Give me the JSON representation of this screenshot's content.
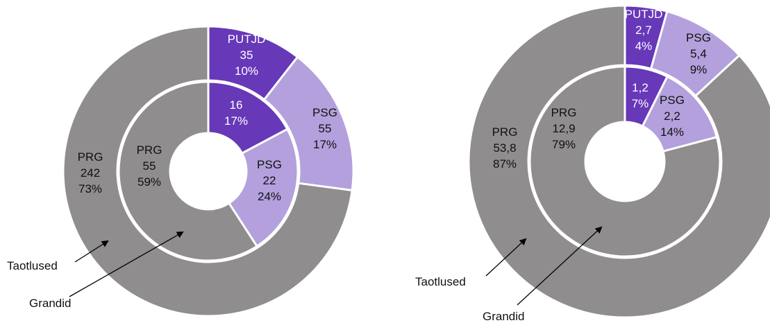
{
  "chart_data": [
    {
      "type": "donut",
      "series": [
        {
          "name": "Taotlused",
          "categories": [
            "PUTJD",
            "PSG",
            "PRG"
          ],
          "values": [
            35,
            55,
            242
          ],
          "percent_labels": [
            "10%",
            "17%",
            "73%"
          ],
          "colors": [
            "#6738b8",
            "#b3a0dc",
            "#8f8d8d"
          ]
        },
        {
          "name": "Grandid",
          "categories": [
            null,
            "PSG",
            "PRG"
          ],
          "values": [
            16,
            22,
            55
          ],
          "percent_labels": [
            "17%",
            "24%",
            "59%"
          ],
          "colors": [
            "#6738b8",
            "#b3a0dc",
            "#8f8d8d"
          ]
        }
      ]
    },
    {
      "type": "donut",
      "series": [
        {
          "name": "Taotlused",
          "categories": [
            "PUTJD",
            "PSG",
            "PRG"
          ],
          "values": [
            2.7,
            5.4,
            53.8
          ],
          "value_labels": [
            "2,7",
            "5,4",
            "53,8"
          ],
          "percent_labels": [
            "4%",
            "9%",
            "87%"
          ],
          "colors": [
            "#6738b8",
            "#b3a0dc",
            "#8f8d8d"
          ]
        },
        {
          "name": "Grandid",
          "categories": [
            null,
            "PSG",
            "PRG"
          ],
          "values": [
            1.2,
            2.2,
            12.9
          ],
          "value_labels": [
            "1,2",
            "2,2",
            "12,9"
          ],
          "percent_labels": [
            "7%",
            "14%",
            "79%"
          ],
          "colors": [
            "#6738b8",
            "#b3a0dc",
            "#8f8d8d"
          ]
        }
      ]
    }
  ]
}
